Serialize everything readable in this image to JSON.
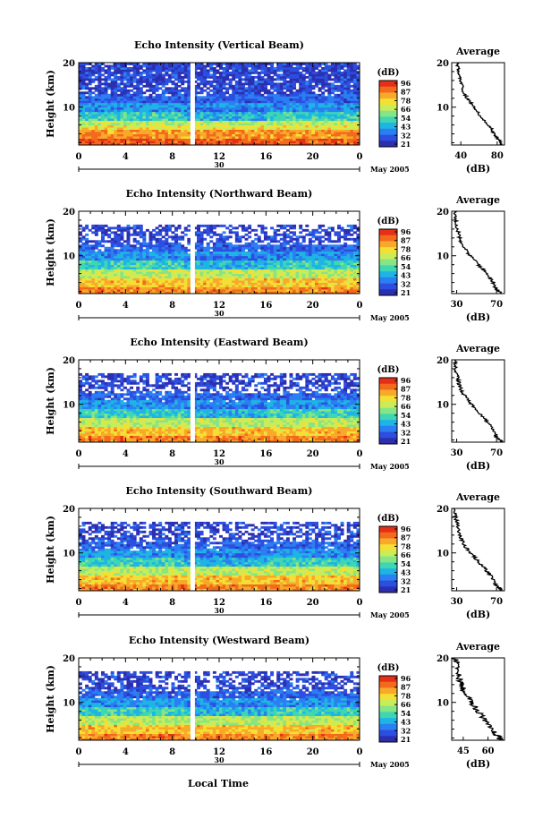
{
  "x_axis_label": "Local Time",
  "avg_xlabel": "(dB)",
  "avg_title": "Average",
  "colorbar_unit": "(dB)",
  "colorbar_ticks": [
    "96",
    "87",
    "78",
    "66",
    "54",
    "43",
    "32",
    "21"
  ],
  "colorbar_colors": [
    "#e53018",
    "#f36a1c",
    "#f9a92a",
    "#f4e034",
    "#c8ec5a",
    "#86e585",
    "#3fd6b4",
    "#1eb4e4",
    "#2a7ff2",
    "#2c4fe0",
    "#2c2fb0"
  ],
  "date_label": "May 2005",
  "day_label": "30",
  "x_ticks": [
    "0",
    "4",
    "8",
    "12",
    "16",
    "20",
    "0"
  ],
  "y_ticks": [
    "20",
    "10"
  ],
  "ylabel": "Height (km)",
  "chart_data": [
    {
      "type": "heatmap",
      "title": "Echo Intensity (Vertical Beam)",
      "ylabel": "Height (km)",
      "xlabel": "Local Time",
      "xlim": [
        0,
        24
      ],
      "ylim": [
        1.5,
        20
      ],
      "avg": {
        "title": "Average",
        "xlabel": "(dB)",
        "xticks": [
          "40",
          "80"
        ],
        "xlim": [
          30,
          88
        ],
        "profile": [
          [
            85,
            1.5
          ],
          [
            84,
            2
          ],
          [
            82,
            2.5
          ],
          [
            80,
            3
          ],
          [
            79,
            3.5
          ],
          [
            77,
            4
          ],
          [
            74,
            5
          ],
          [
            71,
            6
          ],
          [
            66,
            7
          ],
          [
            62,
            8
          ],
          [
            58,
            9
          ],
          [
            55,
            10
          ],
          [
            51,
            11
          ],
          [
            47,
            12
          ],
          [
            44,
            13
          ],
          [
            42,
            14
          ],
          [
            41,
            15
          ],
          [
            40,
            16
          ],
          [
            39,
            17
          ],
          [
            38,
            18
          ],
          [
            37,
            19
          ],
          [
            36,
            20
          ]
        ]
      }
    },
    {
      "type": "heatmap",
      "title": "Echo Intensity (Northward Beam)",
      "ylabel": "Height (km)",
      "xlabel": "Local Time",
      "xlim": [
        0,
        24
      ],
      "ylim": [
        1.5,
        20
      ],
      "avg": {
        "title": "Average",
        "xlabel": "(dB)",
        "xticks": [
          "30",
          "70"
        ],
        "xlim": [
          25,
          78
        ],
        "profile": [
          [
            74,
            1.5
          ],
          [
            73,
            2
          ],
          [
            70,
            2.5
          ],
          [
            68,
            3
          ],
          [
            67,
            4
          ],
          [
            63,
            5
          ],
          [
            60,
            6
          ],
          [
            56,
            7
          ],
          [
            52,
            8
          ],
          [
            48,
            9
          ],
          [
            44,
            10
          ],
          [
            40,
            11
          ],
          [
            37,
            12
          ],
          [
            35,
            13
          ],
          [
            33,
            14
          ],
          [
            32,
            15
          ],
          [
            31,
            16
          ],
          [
            30,
            17
          ],
          [
            29,
            18
          ],
          [
            29,
            19
          ],
          [
            28,
            20
          ]
        ]
      }
    },
    {
      "type": "heatmap",
      "title": "Echo Intensity (Eastward Beam)",
      "ylabel": "Height (km)",
      "xlabel": "Local Time",
      "xlim": [
        0,
        24
      ],
      "ylim": [
        1.5,
        20
      ],
      "avg": {
        "title": "Average",
        "xlabel": "(dB)",
        "xticks": [
          "30",
          "70"
        ],
        "xlim": [
          25,
          78
        ],
        "profile": [
          [
            75,
            1.5
          ],
          [
            73,
            2
          ],
          [
            71,
            2.5
          ],
          [
            69,
            3
          ],
          [
            67,
            4
          ],
          [
            64,
            5
          ],
          [
            61,
            6
          ],
          [
            57,
            7
          ],
          [
            53,
            8
          ],
          [
            49,
            9
          ],
          [
            45,
            10
          ],
          [
            41,
            11
          ],
          [
            38,
            12
          ],
          [
            35,
            13
          ],
          [
            33,
            14
          ],
          [
            32,
            15
          ],
          [
            31,
            16
          ],
          [
            30,
            17
          ],
          [
            29,
            18
          ],
          [
            29,
            19
          ],
          [
            28,
            20
          ]
        ]
      }
    },
    {
      "type": "heatmap",
      "title": "Echo Intensity (Southward Beam)",
      "ylabel": "Height (km)",
      "xlabel": "Local Time",
      "xlim": [
        0,
        24
      ],
      "ylim": [
        1.5,
        20
      ],
      "avg": {
        "title": "Average",
        "xlabel": "(dB)",
        "xticks": [
          "30",
          "70"
        ],
        "xlim": [
          25,
          78
        ],
        "profile": [
          [
            75,
            1.5
          ],
          [
            74,
            2
          ],
          [
            71,
            2.5
          ],
          [
            69,
            3
          ],
          [
            67,
            4
          ],
          [
            64,
            5
          ],
          [
            60,
            6
          ],
          [
            56,
            7
          ],
          [
            52,
            8
          ],
          [
            48,
            9
          ],
          [
            44,
            10
          ],
          [
            40,
            11
          ],
          [
            37,
            12
          ],
          [
            35,
            13
          ],
          [
            33,
            14
          ],
          [
            32,
            15
          ],
          [
            31,
            16
          ],
          [
            30,
            17
          ],
          [
            29,
            18
          ],
          [
            29,
            19
          ],
          [
            28,
            20
          ]
        ]
      }
    },
    {
      "type": "heatmap",
      "title": "Echo Intensity (Westward Beam)",
      "ylabel": "Height (km)",
      "xlabel": "Local Time",
      "xlim": [
        0,
        24
      ],
      "ylim": [
        1.5,
        20
      ],
      "avg": {
        "title": "Average",
        "xlabel": "(dB)",
        "xticks": [
          "45",
          "60"
        ],
        "xlim": [
          38,
          70
        ],
        "profile": [
          [
            68,
            1.5
          ],
          [
            67,
            2
          ],
          [
            66,
            2.5
          ],
          [
            64,
            3
          ],
          [
            63,
            4
          ],
          [
            61,
            5
          ],
          [
            58,
            6
          ],
          [
            56,
            7
          ],
          [
            54,
            8
          ],
          [
            52,
            9
          ],
          [
            50,
            10
          ],
          [
            48,
            11
          ],
          [
            46,
            12
          ],
          [
            45,
            13
          ],
          [
            44,
            14
          ],
          [
            43,
            15
          ],
          [
            42,
            16
          ],
          [
            42,
            17
          ],
          [
            41,
            18
          ],
          [
            41,
            19
          ],
          [
            40,
            20
          ]
        ]
      }
    }
  ]
}
